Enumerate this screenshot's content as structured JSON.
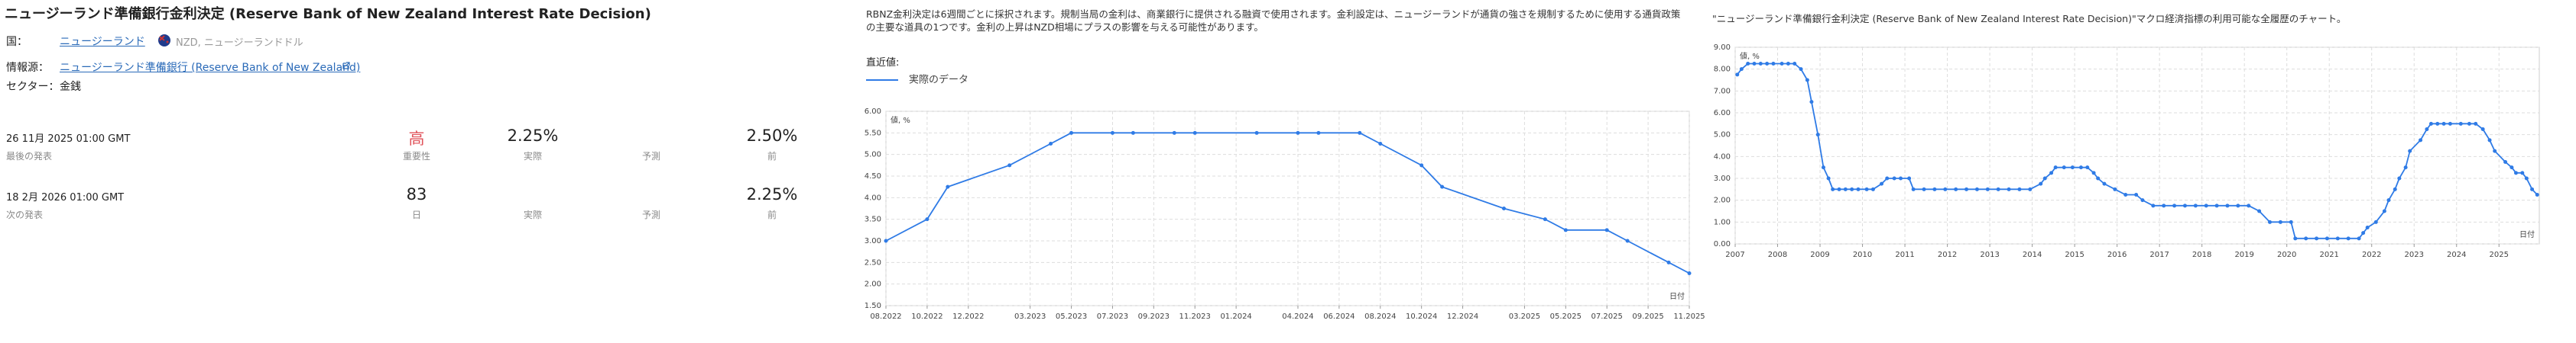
{
  "info": {
    "title": "ニュージーランド準備銀行金利決定 (Reserve Bank of New Zealand Interest Rate Decision)",
    "country_label": "国：",
    "country": "ニュージーランド",
    "currency": "NZD, ニュージーランドドル",
    "source_label": "情報源：",
    "source": "ニュージーランド準備銀行 (Reserve Bank of New Zealand)",
    "sector_label": "セクター：",
    "sector": "金銭",
    "events": [
      {
        "date": "26 11月 2025 01:00 GMT",
        "date_label": "最後の発表",
        "importance": "高",
        "importance_label": "重要性",
        "actual": "2.25%",
        "actual_label": "実際",
        "forecast_label": "予測",
        "previous": "2.50%",
        "previous_label": "前"
      },
      {
        "date": "18 2月 2026 01:00 GMT",
        "date_label": "次の発表",
        "days": "83",
        "days_label": "日",
        "actual_label": "実際",
        "forecast_label": "予測",
        "previous": "2.25%",
        "previous_label": "前"
      }
    ]
  },
  "chart_data": [
    {
      "type": "line",
      "description": "RBNZ金利決定は6週間ごとに採択されます。規制当局の金利は、商業銀行に提供される融資で使用されます。金利設定は、ニュージーランドが通貨の強さを規制するために使用する通貨政策の主要な道具の1つです。金利の上昇はNZD相場にプラスの影響を与える可能性があります。",
      "legend_title": "直近値:",
      "ylabel": "値, %",
      "xlabel": "日付",
      "grid": true,
      "legend": true,
      "x": [
        "08.2022",
        "10.2022",
        "11.2022",
        "02.2023",
        "04.2023",
        "05.2023",
        "07.2023",
        "08.2023",
        "10.2023",
        "11.2023",
        "02.2024",
        "04.2024",
        "05.2024",
        "07.2024",
        "08.2024",
        "10.2024",
        "11.2024",
        "02.2025",
        "04.2025",
        "05.2025",
        "07.2025",
        "08.2025",
        "10.2025",
        "11.2025"
      ],
      "series": [
        {
          "name": "実際のデータ",
          "color": "#2f7be6",
          "values": [
            3.0,
            3.5,
            4.25,
            4.75,
            5.25,
            5.5,
            5.5,
            5.5,
            5.5,
            5.5,
            5.5,
            5.5,
            5.5,
            5.5,
            5.25,
            4.75,
            4.25,
            3.75,
            3.5,
            3.25,
            3.25,
            3.0,
            2.5,
            2.25
          ]
        }
      ],
      "xlim": [
        "08.2022",
        "11.2025"
      ],
      "xticks": [
        "08.2022",
        "10.2022",
        "12.2022",
        "03.2023",
        "05.2023",
        "07.2023",
        "09.2023",
        "11.2023",
        "01.2024",
        "04.2024",
        "06.2024",
        "08.2024",
        "10.2024",
        "12.2024",
        "03.2025",
        "05.2025",
        "07.2025",
        "09.2025",
        "11.2025"
      ],
      "ylim": [
        1.5,
        6.0
      ],
      "yticks": [
        {
          "value": 1.5,
          "label": "1.50"
        },
        {
          "value": 2,
          "label": "2.00"
        },
        {
          "value": 2.5,
          "label": "2.50"
        },
        {
          "value": 3,
          "label": "3.00"
        },
        {
          "value": 3.5,
          "label": "3.50"
        },
        {
          "value": 4,
          "label": "4.00"
        },
        {
          "value": 4.5,
          "label": "4.50"
        },
        {
          "value": 5,
          "label": "5.00"
        },
        {
          "value": 5.5,
          "label": "5.50"
        },
        {
          "value": 6,
          "label": "6.00"
        }
      ]
    },
    {
      "type": "line",
      "title": "\"ニュージーランド準備銀行金利決定 (Reserve Bank of New Zealand Interest Rate Decision)\"マクロ経済指標の利用可能な全履歴のチャート。",
      "ylabel": "値, %",
      "xlabel": "日付",
      "grid": true,
      "legend": false,
      "x": [
        2007.05,
        2007.15,
        2007.3,
        2007.45,
        2007.6,
        2007.75,
        2007.9,
        2008.1,
        2008.25,
        2008.4,
        2008.55,
        2008.7,
        2008.8,
        2008.95,
        2009.08,
        2009.2,
        2009.3,
        2009.45,
        2009.6,
        2009.75,
        2009.9,
        2010.1,
        2010.25,
        2010.45,
        2010.58,
        2010.75,
        2010.9,
        2011.1,
        2011.2,
        2011.45,
        2011.7,
        2011.95,
        2012.2,
        2012.45,
        2012.7,
        2012.95,
        2013.2,
        2013.45,
        2013.7,
        2013.95,
        2014.2,
        2014.3,
        2014.45,
        2014.55,
        2014.75,
        2014.95,
        2015.15,
        2015.3,
        2015.45,
        2015.55,
        2015.7,
        2015.95,
        2016.2,
        2016.45,
        2016.6,
        2016.85,
        2017.1,
        2017.35,
        2017.6,
        2017.85,
        2018.1,
        2018.35,
        2018.6,
        2018.85,
        2019.1,
        2019.35,
        2019.6,
        2019.85,
        2020.1,
        2020.2,
        2020.45,
        2020.7,
        2020.95,
        2021.2,
        2021.45,
        2021.7,
        2021.8,
        2021.9,
        2022.1,
        2022.3,
        2022.4,
        2022.55,
        2022.65,
        2022.8,
        2022.9,
        2023.15,
        2023.3,
        2023.4,
        2023.55,
        2023.7,
        2023.85,
        2024.1,
        2024.3,
        2024.45,
        2024.62,
        2024.78,
        2024.9,
        2025.15,
        2025.3,
        2025.4,
        2025.55,
        2025.65,
        2025.78,
        2025.9
      ],
      "series": [
        {
          "color": "#2f7be6",
          "values": [
            7.75,
            8.0,
            8.25,
            8.25,
            8.25,
            8.25,
            8.25,
            8.25,
            8.25,
            8.25,
            8.0,
            7.5,
            6.5,
            5.0,
            3.5,
            3.0,
            2.5,
            2.5,
            2.5,
            2.5,
            2.5,
            2.5,
            2.5,
            2.75,
            3.0,
            3.0,
            3.0,
            3.0,
            2.5,
            2.5,
            2.5,
            2.5,
            2.5,
            2.5,
            2.5,
            2.5,
            2.5,
            2.5,
            2.5,
            2.5,
            2.75,
            3.0,
            3.25,
            3.5,
            3.5,
            3.5,
            3.5,
            3.5,
            3.25,
            3.0,
            2.75,
            2.5,
            2.25,
            2.25,
            2.0,
            1.75,
            1.75,
            1.75,
            1.75,
            1.75,
            1.75,
            1.75,
            1.75,
            1.75,
            1.75,
            1.5,
            1.0,
            1.0,
            1.0,
            0.25,
            0.25,
            0.25,
            0.25,
            0.25,
            0.25,
            0.25,
            0.5,
            0.75,
            1.0,
            1.5,
            2.0,
            2.5,
            3.0,
            3.5,
            4.25,
            4.75,
            5.25,
            5.5,
            5.5,
            5.5,
            5.5,
            5.5,
            5.5,
            5.5,
            5.25,
            4.75,
            4.25,
            3.75,
            3.5,
            3.25,
            3.25,
            3.0,
            2.5,
            2.25
          ]
        }
      ],
      "xlim": [
        2007,
        2025.95
      ],
      "xticks": [
        2007,
        2008,
        2009,
        2010,
        2011,
        2012,
        2013,
        2014,
        2015,
        2016,
        2017,
        2018,
        2019,
        2020,
        2021,
        2022,
        2023,
        2024,
        2025
      ],
      "ylim": [
        0,
        9
      ],
      "yticks": [
        {
          "value": 0,
          "label": "0.00"
        },
        {
          "value": 1,
          "label": "1.00"
        },
        {
          "value": 2,
          "label": "2.00"
        },
        {
          "value": 3,
          "label": "3.00"
        },
        {
          "value": 4,
          "label": "4.00"
        },
        {
          "value": 5,
          "label": "5.00"
        },
        {
          "value": 6,
          "label": "6.00"
        },
        {
          "value": 7,
          "label": "7.00"
        },
        {
          "value": 8,
          "label": "8.00"
        },
        {
          "value": 9,
          "label": "9.00"
        }
      ]
    }
  ]
}
